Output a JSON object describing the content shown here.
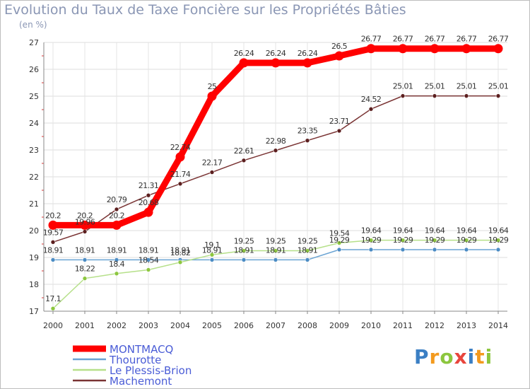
{
  "title": "Evolution du Taux de Taxe Foncière sur les Propriétés Bâties",
  "unit": "(en %)",
  "logo": {
    "text": "Proxiti",
    "colors": [
      "#3b7fc4",
      "#f39a1e",
      "#8cc63e",
      "#e8453c",
      "#3b7fc4",
      "#f39a1e",
      "#8cc63e"
    ]
  },
  "chart_data": {
    "type": "line",
    "title": "Evolution du Taux de Taxe Foncière sur les Propriétés Bâties",
    "ylabel": "(en %)",
    "xlabel": "",
    "ylim": [
      17,
      27
    ],
    "yticks": [
      "17",
      "18",
      "19",
      "20",
      "21",
      "22",
      "23",
      "24",
      "25",
      "26",
      "27"
    ],
    "x": [
      "2000",
      "2001",
      "2002",
      "2003",
      "2004",
      "2005",
      "2006",
      "2007",
      "2008",
      "2009",
      "2010",
      "2011",
      "2012",
      "2013",
      "2014"
    ],
    "grid": true,
    "legend_position": "bottom-left",
    "series": [
      {
        "name": "Machemont",
        "color": "#7a3434",
        "marker": "#5c1f1f",
        "values": [
          19.57,
          19.96,
          20.79,
          21.31,
          21.74,
          22.17,
          22.61,
          22.98,
          23.35,
          23.71,
          24.52,
          25.01,
          25.01,
          25.01,
          25.01
        ],
        "labels": [
          "19.57",
          "19.96",
          "20.79",
          "21.31",
          "21.74",
          "22.17",
          "22.61",
          "22.98",
          "23.35",
          "23.71",
          "24.52",
          "25.01",
          "25.01",
          "25.01",
          "25.01"
        ]
      },
      {
        "name": "Thourotte",
        "color": "#6aa3d3",
        "marker": "#4c8cc4",
        "values": [
          18.91,
          18.91,
          18.91,
          18.91,
          18.91,
          18.91,
          18.91,
          18.91,
          18.91,
          19.29,
          19.29,
          19.29,
          19.29,
          19.29,
          19.29
        ],
        "labels": [
          "18.91",
          "18.91",
          "18.91",
          "18.91",
          "18.91",
          "18.91",
          "18.91",
          "18.91",
          "18.91",
          "19.29",
          "19.29",
          "19.29",
          "19.29",
          "19.29",
          "19.29"
        ]
      },
      {
        "name": "Le Plessis-Brion",
        "color": "#b6e08a",
        "marker": "#8cc63e",
        "values": [
          17.1,
          18.22,
          18.4,
          18.54,
          18.82,
          19.1,
          19.25,
          19.25,
          19.25,
          19.54,
          19.64,
          19.64,
          19.64,
          19.64,
          19.64
        ],
        "labels": [
          "17.1",
          "18.22",
          "18.4",
          "18.54",
          "18.82",
          "19.1",
          "19.25",
          "19.25",
          "19.25",
          "19.54",
          "19.64",
          "19.64",
          "19.64",
          "19.64",
          "19.64"
        ]
      },
      {
        "name": "MONTMACQ",
        "color": "#ff0000",
        "marker": "#ff0000",
        "values": [
          20.2,
          20.2,
          20.2,
          20.68,
          22.74,
          25.0,
          26.24,
          26.24,
          26.24,
          26.5,
          26.77,
          26.77,
          26.77,
          26.77,
          26.77
        ],
        "labels": [
          "20.2",
          "20.2",
          "20.2",
          "20.68",
          "22.74",
          "25",
          "26.24",
          "26.24",
          "26.24",
          "26.5",
          "26.77",
          "26.77",
          "26.77",
          "26.77",
          "26.77"
        ]
      }
    ],
    "legend": [
      "MONTMACQ",
      "Thourotte",
      "Le Plessis-Brion",
      "Machemont"
    ]
  }
}
